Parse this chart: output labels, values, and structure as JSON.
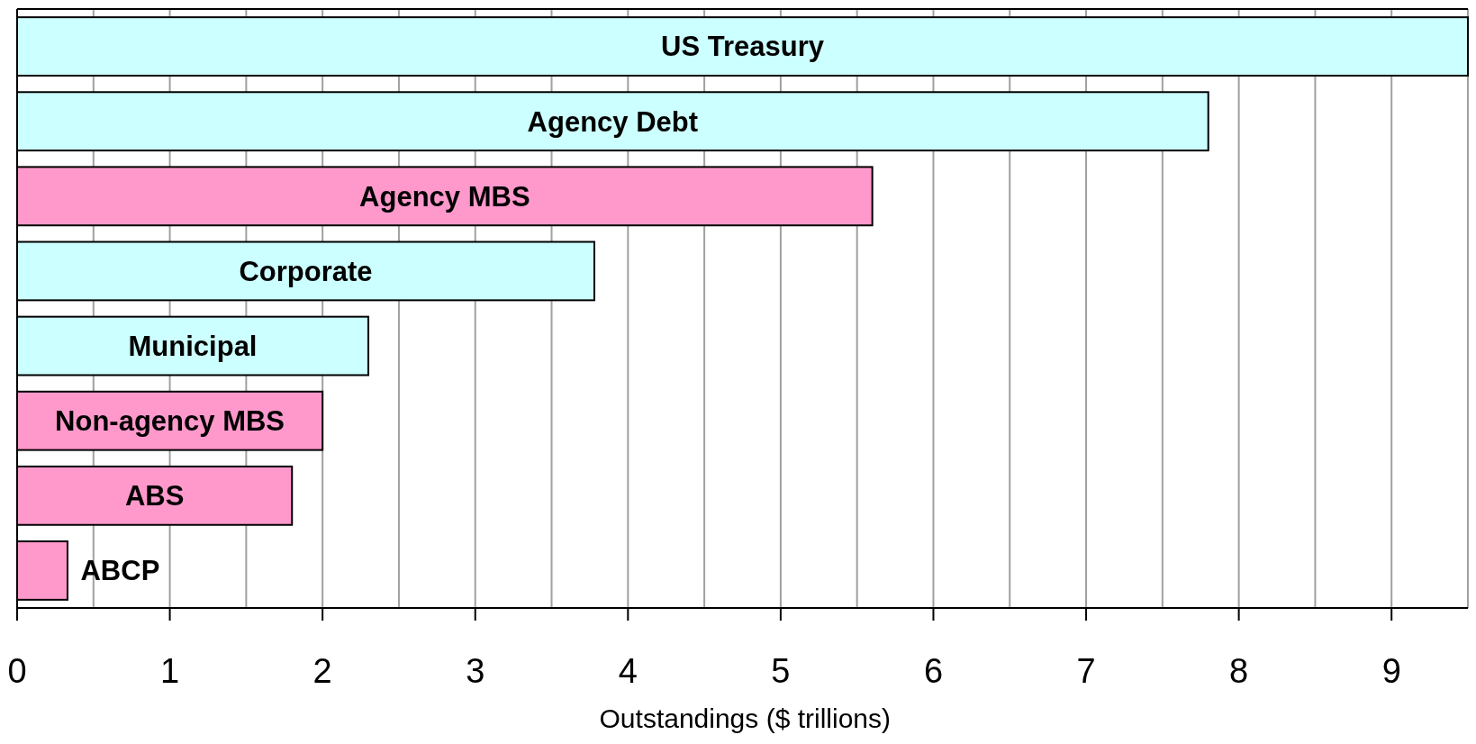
{
  "chart_data": {
    "type": "bar",
    "orientation": "horizontal",
    "xlabel": "Outstandings ($ trillions)",
    "categories": [
      "US Treasury",
      "Agency Debt",
      "Agency MBS",
      "Corporate",
      "Municipal",
      "Non-agency MBS",
      "ABS",
      "ABCP"
    ],
    "values": [
      9.5,
      7.8,
      5.6,
      3.78,
      2.3,
      2.0,
      1.8,
      0.33
    ],
    "colors": [
      "#ccffff",
      "#ccffff",
      "#ff99cc",
      "#ccffff",
      "#ccffff",
      "#ff99cc",
      "#ff99cc",
      "#ff99cc"
    ],
    "xlim": [
      0,
      9.5
    ],
    "xticks": [
      0,
      {
        "value": 0.5,
        "label": null
      },
      1,
      {
        "value": 1.5,
        "label": null
      },
      2,
      {
        "value": 2.5,
        "label": null
      },
      3,
      {
        "value": 3.5,
        "label": null
      },
      4,
      {
        "value": 4.5,
        "label": null
      },
      5,
      {
        "value": 5.5,
        "label": null
      },
      6,
      {
        "value": 6.5,
        "label": null
      },
      7,
      {
        "value": 7.5,
        "label": null
      },
      8,
      {
        "value": 8.5,
        "label": null
      },
      9,
      {
        "value": 9.5,
        "label": null
      }
    ],
    "grid": "x"
  }
}
